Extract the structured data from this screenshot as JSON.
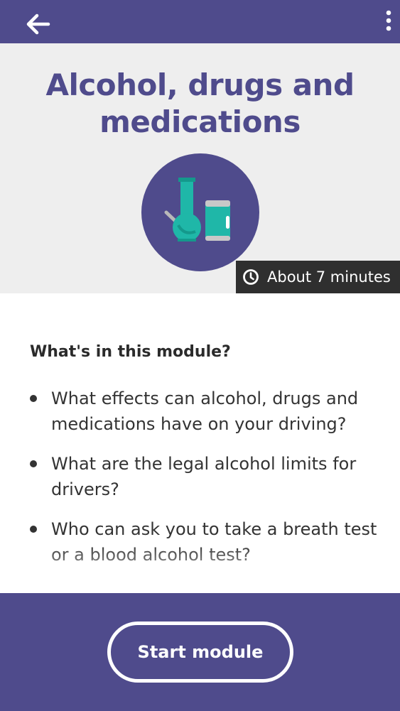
{
  "header": {
    "back_icon": "arrow-left-icon",
    "menu_icon": "more-vertical-icon",
    "background": "#4f4b8c"
  },
  "hero": {
    "title": "Alcohol, drugs and medications",
    "illustration_icon": "bong-and-can-icon",
    "duration_icon": "clock-icon",
    "duration": "About 7 minutes"
  },
  "module": {
    "heading": "What's in this module?",
    "items": [
      "What effects can alcohol, drugs and medications have on your driving?",
      "What are the legal alcohol limits for drivers?",
      "Who can ask you to take a breath test or a blood alcohol test?"
    ]
  },
  "footer": {
    "start_label": "Start module"
  },
  "colors": {
    "brand": "#4f4b8c",
    "hero_bg": "#eeeeee",
    "teal": "#1fb7a8",
    "duration_bg": "#2f2f2f"
  }
}
